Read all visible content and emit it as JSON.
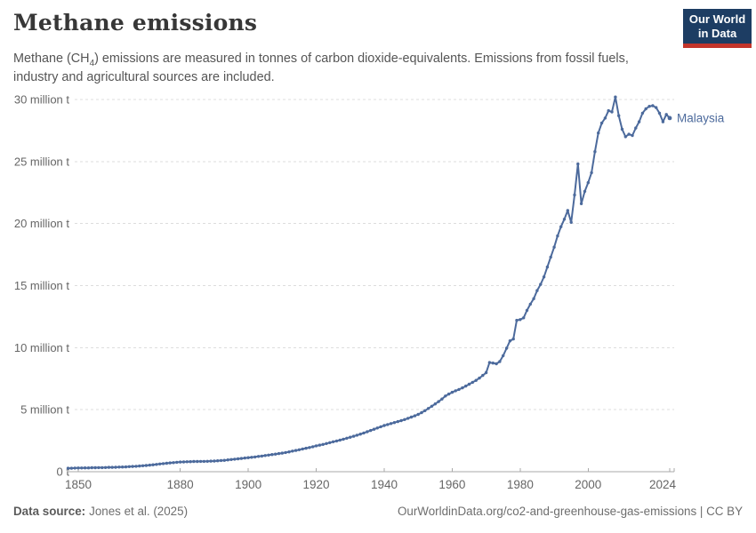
{
  "header": {
    "title": "Methane emissions",
    "subtitle": {
      "pre": "Methane (CH",
      "sub": "4",
      "post": ") emissions are measured in tonnes of carbon dioxide-equivalents. Emissions from fossil fuels, industry and agricultural sources are included."
    },
    "logo": {
      "line1": "Our World",
      "line2": "in Data"
    }
  },
  "colors": {
    "line": "#4c6a9c",
    "grid": "#dddddd",
    "axis": "#a9a9a9",
    "tick_text": "#666666",
    "logo_bg": "#1d3d63",
    "logo_red": "#c3352b",
    "title_text": "#373737",
    "subtitle_text": "#555555"
  },
  "chart_data": {
    "type": "line",
    "title": "Methane emissions",
    "xlabel": "",
    "ylabel": "",
    "x_axis": {
      "range": [
        1847,
        2024
      ],
      "ticks": [
        1850,
        1880,
        1900,
        1920,
        1940,
        1960,
        1980,
        2000,
        2024
      ]
    },
    "y_axis": {
      "range": [
        0,
        30
      ],
      "grid": true,
      "ticks": [
        {
          "value": 0,
          "label": "0 t"
        },
        {
          "value": 5,
          "label": "5 million t"
        },
        {
          "value": 10,
          "label": "10 million t"
        },
        {
          "value": 15,
          "label": "15 million t"
        },
        {
          "value": 20,
          "label": "20 million t"
        },
        {
          "value": 25,
          "label": "25 million t"
        },
        {
          "value": 30,
          "label": "30 million t"
        }
      ]
    },
    "legend_position": "end-of-line",
    "series": [
      {
        "name": "Malaysia",
        "color": "#4c6a9c",
        "unit": "million tonnes of carbon dioxide-equivalents",
        "start_year": 1847,
        "end_year": 2024,
        "values": [
          0.28,
          0.28,
          0.29,
          0.3,
          0.3,
          0.31,
          0.31,
          0.32,
          0.32,
          0.33,
          0.33,
          0.34,
          0.35,
          0.35,
          0.36,
          0.37,
          0.38,
          0.39,
          0.41,
          0.42,
          0.44,
          0.46,
          0.48,
          0.5,
          0.53,
          0.56,
          0.59,
          0.62,
          0.65,
          0.68,
          0.71,
          0.73,
          0.76,
          0.78,
          0.79,
          0.8,
          0.81,
          0.82,
          0.82,
          0.83,
          0.83,
          0.84,
          0.85,
          0.86,
          0.88,
          0.9,
          0.92,
          0.95,
          0.98,
          1.01,
          1.04,
          1.07,
          1.1,
          1.13,
          1.16,
          1.19,
          1.23,
          1.26,
          1.3,
          1.34,
          1.38,
          1.42,
          1.46,
          1.5,
          1.55,
          1.6,
          1.66,
          1.71,
          1.77,
          1.83,
          1.89,
          1.95,
          2.01,
          2.08,
          2.14,
          2.2,
          2.27,
          2.34,
          2.41,
          2.48,
          2.55,
          2.62,
          2.7,
          2.78,
          2.86,
          2.94,
          3.03,
          3.12,
          3.22,
          3.32,
          3.42,
          3.52,
          3.62,
          3.72,
          3.8,
          3.88,
          3.96,
          4.04,
          4.12,
          4.2,
          4.3,
          4.4,
          4.5,
          4.62,
          4.76,
          4.92,
          5.1,
          5.28,
          5.46,
          5.65,
          5.86,
          6.1,
          6.26,
          6.4,
          6.52,
          6.63,
          6.76,
          6.9,
          7.05,
          7.2,
          7.36,
          7.55,
          7.76,
          7.98,
          8.8,
          8.76,
          8.7,
          8.88,
          9.35,
          9.95,
          10.55,
          10.7,
          12.2,
          12.26,
          12.4,
          13.0,
          13.5,
          13.95,
          14.6,
          15.1,
          15.7,
          16.5,
          17.3,
          18.1,
          19.0,
          19.75,
          20.35,
          21.05,
          20.1,
          22.3,
          24.8,
          21.6,
          22.6,
          23.3,
          24.1,
          25.8,
          27.3,
          28.1,
          28.5,
          29.1,
          29.0,
          30.2,
          28.7,
          27.6,
          27.0,
          27.2,
          27.1,
          27.7,
          28.2,
          28.9,
          29.25,
          29.45,
          29.5,
          29.35,
          28.9,
          28.2,
          28.8,
          28.5
        ]
      }
    ]
  },
  "footer": {
    "source_label": "Data source:",
    "source_value": "Jones et al. (2025)",
    "url": "OurWorldinData.org/co2-and-greenhouse-gas-emissions",
    "license_suffix": " | CC BY"
  }
}
